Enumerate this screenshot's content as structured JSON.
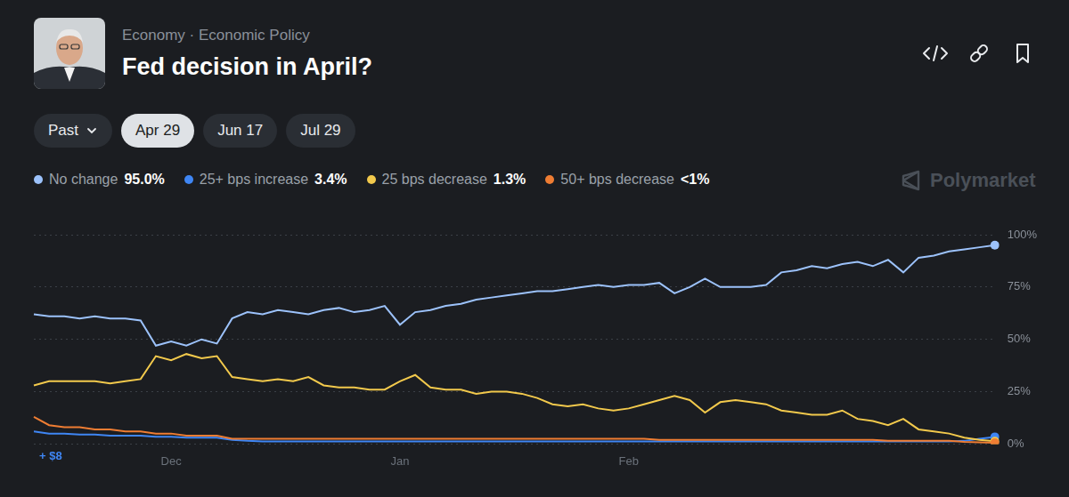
{
  "title": "Fed decision in April?",
  "breadcrumb": "Economy · Economic Policy",
  "tabs": [
    "Past",
    "Apr 29",
    "Jun 17",
    "Jul 29"
  ],
  "active_tab": "Apr 29",
  "watermark": "Polymarket",
  "chart_data": {
    "type": "line",
    "categories": [
      null,
      null,
      null,
      null,
      null,
      null,
      null,
      null,
      null,
      "Dec",
      null,
      null,
      null,
      null,
      null,
      null,
      null,
      null,
      null,
      null,
      null,
      null,
      null,
      null,
      "Jan",
      null,
      null,
      null,
      null,
      null,
      null,
      null,
      null,
      null,
      null,
      null,
      null,
      null,
      null,
      "Feb",
      null,
      null,
      null,
      null,
      null,
      null,
      null,
      null,
      null,
      null,
      null,
      null,
      null,
      null,
      null,
      null,
      null,
      null,
      null,
      null,
      null,
      null,
      null,
      null
    ],
    "series": [
      {
        "name": "No change",
        "legend_value": "95.0%",
        "color": "#9cc2fb",
        "values": [
          62,
          61,
          61,
          60,
          61,
          60,
          60,
          59,
          47,
          49,
          47,
          50,
          48,
          60,
          63,
          62,
          64,
          63,
          62,
          64,
          65,
          63,
          64,
          66,
          57,
          63,
          64,
          66,
          67,
          69,
          70,
          71,
          72,
          73,
          73,
          74,
          75,
          76,
          75,
          76,
          76,
          77,
          72,
          75,
          79,
          75,
          75,
          75,
          76,
          82,
          83,
          85,
          84,
          86,
          87,
          85,
          88,
          82,
          89,
          90,
          92,
          93,
          94,
          95
        ]
      },
      {
        "name": "25+ bps increase",
        "legend_value": "3.4%",
        "color": "#3f86f4",
        "values": [
          6,
          5,
          5,
          4.5,
          4.5,
          4,
          4,
          4,
          3.5,
          3.5,
          3,
          3,
          3,
          2,
          1.5,
          1.2,
          1.2,
          1.2,
          1.2,
          1.2,
          1.2,
          1.2,
          1.2,
          1.2,
          1.2,
          1.2,
          1.2,
          1.2,
          1.2,
          1.2,
          1.2,
          1.2,
          1.2,
          1.2,
          1.2,
          1.2,
          1.2,
          1.2,
          1.2,
          1.2,
          1.2,
          1.2,
          1.2,
          1.2,
          1.2,
          1.2,
          1.2,
          1.2,
          1.2,
          1.2,
          1.2,
          1.2,
          1.2,
          1.2,
          1.2,
          1.2,
          1.2,
          1.2,
          1.2,
          1.2,
          1.2,
          1.5,
          2.5,
          3.4
        ]
      },
      {
        "name": "25 bps decrease",
        "legend_value": "1.3%",
        "color": "#f2c94c",
        "values": [
          28,
          30,
          30,
          30,
          30,
          29,
          30,
          31,
          42,
          40,
          43,
          41,
          42,
          32,
          31,
          30,
          31,
          30,
          32,
          28,
          27,
          27,
          26,
          26,
          30,
          33,
          27,
          26,
          26,
          24,
          25,
          25,
          24,
          22,
          19,
          18,
          19,
          17,
          16,
          17,
          19,
          21,
          23,
          21,
          15,
          20,
          21,
          20,
          19,
          16,
          15,
          14,
          14,
          16,
          12,
          11,
          9,
          12,
          7,
          6,
          5,
          3,
          2,
          1.3
        ]
      },
      {
        "name": "50+ bps decrease",
        "legend_value": "<1%",
        "color": "#ef7d33",
        "values": [
          13,
          9,
          8,
          8,
          7,
          7,
          6,
          6,
          5,
          5,
          4,
          4,
          4,
          2.5,
          2.5,
          2.5,
          2.5,
          2.5,
          2.5,
          2.5,
          2.5,
          2.5,
          2.5,
          2.5,
          2.5,
          2.5,
          2.5,
          2.5,
          2.5,
          2.5,
          2.5,
          2.5,
          2.5,
          2.5,
          2.5,
          2.5,
          2.5,
          2.5,
          2.5,
          2.5,
          2.5,
          2,
          2,
          2,
          2,
          2,
          2,
          2,
          2,
          2,
          2,
          2,
          2,
          2,
          2,
          2,
          1.5,
          1.5,
          1.5,
          1.5,
          1.5,
          1,
          0.8,
          0.6
        ]
      }
    ],
    "ylim": [
      0,
      100
    ],
    "yticks": [
      {
        "value": 0,
        "label": "0%"
      },
      {
        "value": 25,
        "label": "25%"
      },
      {
        "value": 50,
        "label": "50%"
      },
      {
        "value": 75,
        "label": "75%"
      },
      {
        "value": 100,
        "label": "100%"
      }
    ],
    "grid": true,
    "legend": "top",
    "annotations": [
      {
        "text": "+ $8",
        "series": "25+ bps increase"
      }
    ]
  }
}
